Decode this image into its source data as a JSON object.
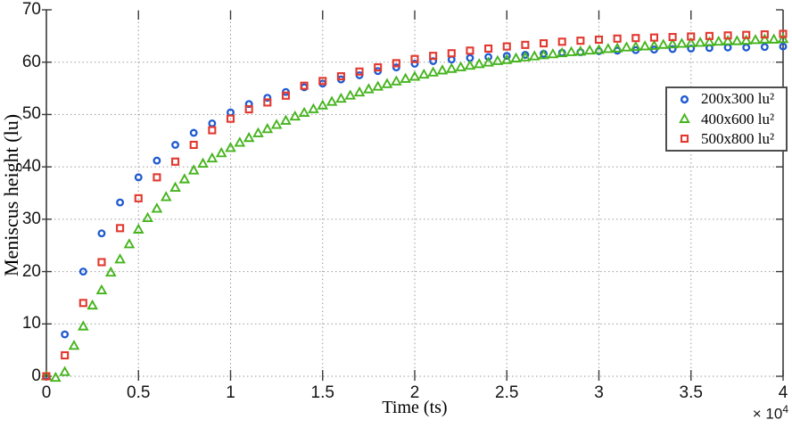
{
  "figure": {
    "xlabel": "Time (ts)",
    "ylabel": "Meniscus height (lu)",
    "x_multiplier": {
      "base": "× 10",
      "exp": "4"
    },
    "x_ticks": [
      "0",
      "0.5",
      "1",
      "1.5",
      "2",
      "2.5",
      "3",
      "3.5",
      "4"
    ],
    "y_ticks": [
      "0",
      "10",
      "20",
      "30",
      "40",
      "50",
      "60",
      "70"
    ],
    "grid_color": "#9a9a9a",
    "axis_color": "#3a3a3a"
  },
  "legend": {
    "entries": [
      {
        "label": "200x300 lu²",
        "marker": "circle",
        "color": "#1f5ad0"
      },
      {
        "label": "400x600 lu²",
        "marker": "triangle",
        "color": "#46b41e"
      },
      {
        "label": "500x800 lu²",
        "marker": "square",
        "color": "#e2392f"
      }
    ]
  },
  "chart_data": {
    "type": "scatter",
    "title": "",
    "xlabel": "Time (ts)",
    "ylabel": "Meniscus height (lu)",
    "x_scale_note": "x values are ×10⁴ ts",
    "xlim": [
      0,
      4
    ],
    "ylim": [
      0,
      70
    ],
    "grid": "dotted",
    "legend_position": "right",
    "series": [
      {
        "name": "200x300 lu²",
        "marker": "circle",
        "color": "#1f5ad0",
        "x": [
          0,
          0.1,
          0.2,
          0.3,
          0.4,
          0.5,
          0.6,
          0.7,
          0.8,
          0.9,
          1,
          1.1,
          1.2,
          1.3,
          1.4,
          1.5,
          1.6,
          1.7,
          1.8,
          1.9,
          2,
          2.1,
          2.2,
          2.3,
          2.4,
          2.5,
          2.6,
          2.7,
          2.8,
          2.9,
          3,
          3.1,
          3.2,
          3.3,
          3.4,
          3.5,
          3.6,
          3.7,
          3.8,
          3.9,
          4
        ],
        "y": [
          0,
          8,
          20,
          27.3,
          33.2,
          38,
          41.2,
          44.2,
          46.5,
          48.3,
          50.4,
          52,
          53.2,
          54.3,
          55.2,
          55.9,
          56.7,
          57.5,
          58.3,
          59,
          59.7,
          60.2,
          60.5,
          60.8,
          61,
          61.2,
          61.4,
          61.6,
          61.8,
          61.9,
          62.1,
          62.2,
          62.3,
          62.4,
          62.5,
          62.6,
          62.7,
          62.8,
          62.8,
          62.9,
          63
        ]
      },
      {
        "name": "400x600 lu²",
        "marker": "triangle",
        "color": "#46b41e",
        "x": [
          0,
          0.05,
          0.1,
          0.15,
          0.2,
          0.25,
          0.3,
          0.35,
          0.4,
          0.45,
          0.5,
          0.55,
          0.6,
          0.65,
          0.7,
          0.75,
          0.8,
          0.85,
          0.9,
          0.95,
          1,
          1.05,
          1.1,
          1.15,
          1.2,
          1.25,
          1.3,
          1.35,
          1.4,
          1.45,
          1.5,
          1.55,
          1.6,
          1.65,
          1.7,
          1.75,
          1.8,
          1.85,
          1.9,
          1.95,
          2,
          2.05,
          2.1,
          2.15,
          2.2,
          2.25,
          2.3,
          2.35,
          2.4,
          2.45,
          2.5,
          2.55,
          2.6,
          2.65,
          2.7,
          2.75,
          2.8,
          2.85,
          2.9,
          2.95,
          3,
          3.05,
          3.1,
          3.15,
          3.2,
          3.25,
          3.3,
          3.35,
          3.4,
          3.45,
          3.5,
          3.55,
          3.6,
          3.65,
          3.7,
          3.75,
          3.8,
          3.85,
          3.9,
          3.95,
          4
        ],
        "y": [
          0,
          -0.3,
          0.8,
          5.8,
          9.5,
          13.5,
          16.4,
          19.8,
          22.3,
          25.2,
          28,
          30.2,
          32,
          34.2,
          36,
          37.6,
          39.3,
          40.6,
          41.6,
          42.6,
          43.6,
          44.6,
          45.5,
          46.4,
          47.2,
          48,
          48.8,
          49.6,
          50.3,
          51,
          51.7,
          52.4,
          53,
          53.6,
          54.2,
          54.8,
          55.3,
          55.8,
          56.3,
          56.8,
          57.2,
          57.6,
          58,
          58.4,
          58.7,
          59,
          59.3,
          59.6,
          59.9,
          60.2,
          60.4,
          60.7,
          60.9,
          61.1,
          61.3,
          61.5,
          61.7,
          61.9,
          62,
          62.2,
          62.3,
          62.5,
          62.6,
          62.8,
          62.9,
          63,
          63.1,
          63.3,
          63.4,
          63.5,
          63.6,
          63.7,
          63.8,
          63.9,
          64,
          64,
          64.1,
          64.2,
          64.3,
          64.3,
          64.4
        ]
      },
      {
        "name": "500x800 lu²",
        "marker": "square",
        "color": "#e2392f",
        "x": [
          0,
          0.1,
          0.2,
          0.3,
          0.4,
          0.5,
          0.6,
          0.7,
          0.8,
          0.9,
          1,
          1.1,
          1.2,
          1.3,
          1.4,
          1.5,
          1.6,
          1.7,
          1.8,
          1.9,
          2,
          2.1,
          2.2,
          2.3,
          2.4,
          2.5,
          2.6,
          2.7,
          2.8,
          2.9,
          3,
          3.1,
          3.2,
          3.3,
          3.4,
          3.5,
          3.6,
          3.7,
          3.8,
          3.9,
          4
        ],
        "y": [
          0,
          4,
          14,
          21.8,
          28.3,
          34,
          38,
          41,
          44.2,
          47,
          49.2,
          51,
          52.3,
          53.6,
          55.5,
          56.4,
          57.3,
          58.2,
          59,
          59.8,
          60.6,
          61.2,
          61.7,
          62.2,
          62.6,
          63,
          63.3,
          63.6,
          63.9,
          64.1,
          64.3,
          64.5,
          64.6,
          64.7,
          64.8,
          64.9,
          65,
          65.1,
          65.2,
          65.3,
          65.4
        ]
      }
    ]
  }
}
